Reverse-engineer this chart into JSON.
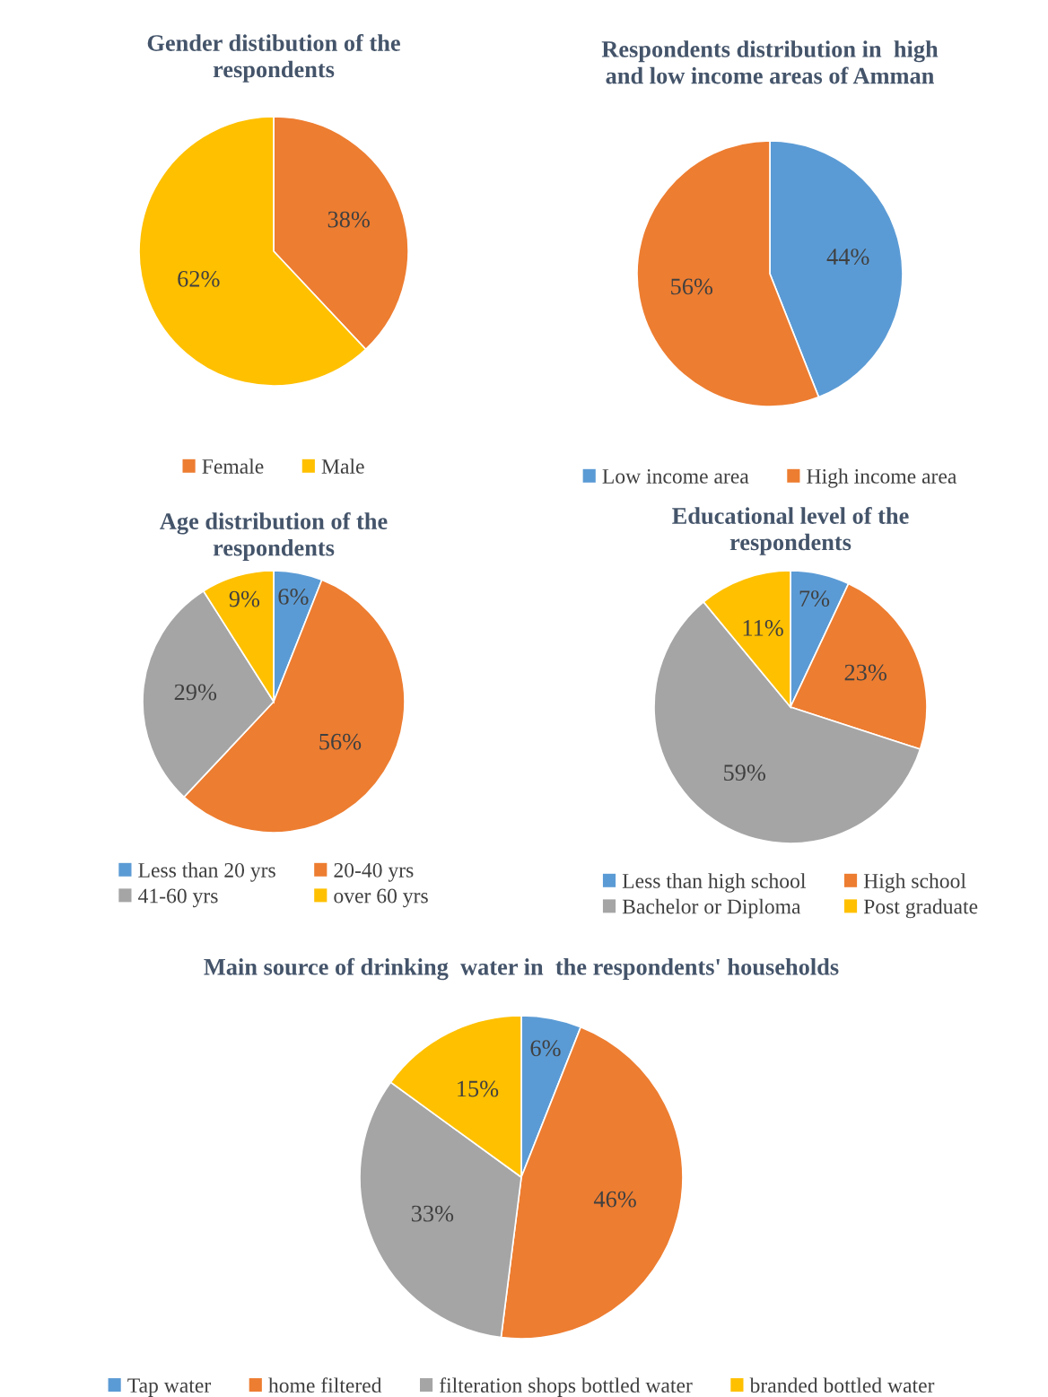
{
  "chart_data": [
    {
      "type": "pie",
      "title": "Gender distibution of the\nrespondents",
      "categories": [
        "Female",
        "Male"
      ],
      "values": [
        38,
        62
      ],
      "colors": [
        "#ed7d31",
        "#ffc000"
      ],
      "value_labels": [
        "38%",
        "62%"
      ],
      "legend": "bottom"
    },
    {
      "type": "pie",
      "title": "Respondents distribution in  high\nand low income areas of Amman",
      "categories": [
        "Low income area",
        "High income area"
      ],
      "values": [
        44,
        56
      ],
      "colors": [
        "#5b9bd5",
        "#ed7d31"
      ],
      "value_labels": [
        "44%",
        "56%"
      ],
      "legend": "bottom"
    },
    {
      "type": "pie",
      "title": "Age distribution of the\nrespondents",
      "categories": [
        "Less than 20 yrs",
        "20-40 yrs",
        "41-60 yrs",
        "over 60 yrs"
      ],
      "values": [
        6,
        56,
        29,
        9
      ],
      "colors": [
        "#5b9bd5",
        "#ed7d31",
        "#a5a5a5",
        "#ffc000"
      ],
      "value_labels": [
        "6%",
        "56%",
        "29%",
        "9%"
      ],
      "legend": "bottom"
    },
    {
      "type": "pie",
      "title": "Educational level of the\nrespondents",
      "categories": [
        "Less than high school",
        "High school",
        "Bachelor or Diploma",
        "Post graduate"
      ],
      "values": [
        7,
        23,
        59,
        11
      ],
      "colors": [
        "#5b9bd5",
        "#ed7d31",
        "#a5a5a5",
        "#ffc000"
      ],
      "value_labels": [
        "7%",
        "23%",
        "59%",
        "11%"
      ],
      "legend": "bottom"
    },
    {
      "type": "pie",
      "title": "Main source of drinking  water in  the respondents' households",
      "categories": [
        "Tap water",
        "home filtered",
        "filteration shops bottled water",
        "branded bottled water"
      ],
      "values": [
        6,
        46,
        33,
        15
      ],
      "colors": [
        "#5b9bd5",
        "#ed7d31",
        "#a5a5a5",
        "#ffc000"
      ],
      "value_labels": [
        "6%",
        "46%",
        "33%",
        "15%"
      ],
      "legend": "bottom"
    }
  ]
}
